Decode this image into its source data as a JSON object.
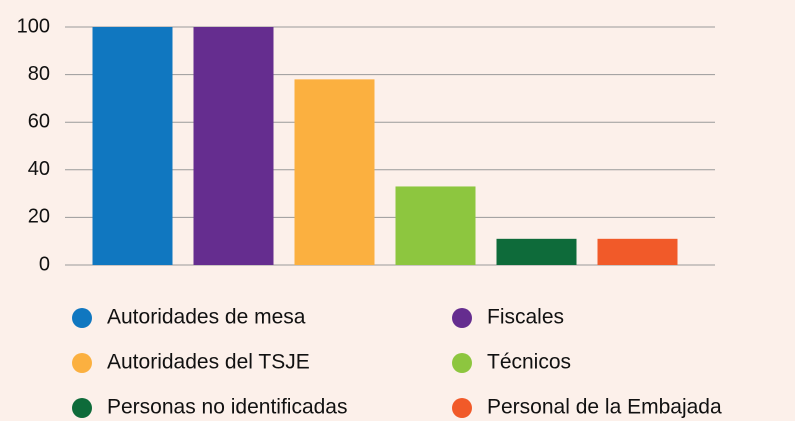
{
  "chart_data": {
    "type": "bar",
    "categories": [
      "Autoridades de mesa",
      "Fiscales",
      "Autoridades del TSJE",
      "Técnicos",
      "Personas no identificadas",
      "Personal de la Embajada"
    ],
    "values": [
      100,
      100,
      78,
      33,
      11,
      11
    ],
    "colors": [
      "#1077c0",
      "#652d8f",
      "#fbb040",
      "#8dc63f",
      "#0e6b3a",
      "#f15a29"
    ],
    "ylim": [
      0,
      100
    ],
    "yticks": [
      0,
      20,
      40,
      60,
      80,
      100
    ],
    "grid": true,
    "legend": "bottom"
  }
}
